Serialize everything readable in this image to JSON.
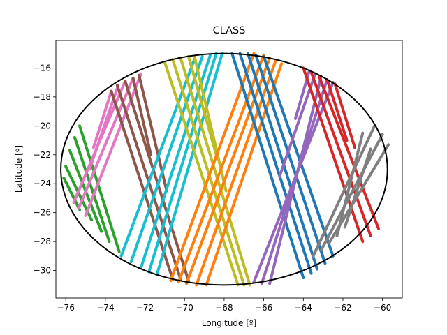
{
  "chart_data": {
    "type": "line",
    "title": "CLASS",
    "xlabel": "Longitude [º]",
    "ylabel": "Latitude [º]",
    "xlim": [
      -76.5,
      -59.0
    ],
    "ylim": [
      -31.9,
      -14.1
    ],
    "grid": false,
    "legend": "none",
    "x_ticks": [
      -76,
      -74,
      -72,
      -70,
      -68,
      -66,
      -64,
      -62,
      -60
    ],
    "y_ticks": [
      -30,
      -28,
      -26,
      -24,
      -22,
      -20,
      -18,
      -16
    ],
    "x_tick_labels": [
      "−76",
      "−74",
      "−72",
      "−70",
      "−68",
      "−66",
      "−64",
      "−62",
      "−60"
    ],
    "y_tick_labels": [
      "−30",
      "−28",
      "−26",
      "−24",
      "−22",
      "−20",
      "−18",
      "−16"
    ],
    "boundary_ellipse": {
      "center": [
        -68.0,
        -23.0
      ],
      "semi_axis_lon": 8.25,
      "semi_axis_lat": 8.0,
      "color": "#000000"
    },
    "series": [
      {
        "color": "#2ca02c",
        "tracks": [
          [
            [
              -75.3,
              -20.0
            ],
            [
              -73.3,
              -28.7
            ]
          ],
          [
            [
              -75.55,
              -20.8
            ],
            [
              -73.8,
              -28.0
            ]
          ],
          [
            [
              -75.8,
              -21.7
            ],
            [
              -74.2,
              -27.3
            ]
          ],
          [
            [
              -76.0,
              -22.8
            ],
            [
              -74.7,
              -26.5
            ]
          ],
          [
            [
              -76.1,
              -23.6
            ],
            [
              -75.3,
              -25.8
            ]
          ]
        ]
      },
      {
        "color": "#e377c2",
        "tracks": [
          [
            [
              -72.2,
              -16.4
            ],
            [
              -75.0,
              -26.2
            ]
          ],
          [
            [
              -72.6,
              -16.7
            ],
            [
              -75.35,
              -25.7
            ]
          ],
          [
            [
              -73.0,
              -16.9
            ],
            [
              -75.6,
              -25.3
            ]
          ],
          [
            [
              -73.35,
              -17.2
            ],
            [
              -74.8,
              -23.0
            ]
          ],
          [
            [
              -73.7,
              -17.6
            ],
            [
              -74.6,
              -21.5
            ]
          ]
        ]
      },
      {
        "color": "#8c564b",
        "tracks": [
          [
            [
              -73.7,
              -17.6
            ],
            [
              -70.6,
              -30.6
            ]
          ],
          [
            [
              -73.4,
              -17.2
            ],
            [
              -70.2,
              -30.6
            ]
          ],
          [
            [
              -73.0,
              -16.9
            ],
            [
              -69.8,
              -30.7
            ]
          ],
          [
            [
              -72.6,
              -16.7
            ],
            [
              -71.7,
              -22.0
            ]
          ],
          [
            [
              -72.3,
              -16.5
            ],
            [
              -70.9,
              -24.5
            ]
          ]
        ]
      },
      {
        "color": "#17becf",
        "tracks": [
          [
            [
              -69.5,
              -15.4
            ],
            [
              -73.2,
              -29.0
            ]
          ],
          [
            [
              -69.1,
              -15.2
            ],
            [
              -72.7,
              -29.4
            ]
          ],
          [
            [
              -68.7,
              -15.1
            ],
            [
              -72.2,
              -29.8
            ]
          ],
          [
            [
              -68.4,
              -15.0
            ],
            [
              -71.8,
              -30.1
            ]
          ],
          [
            [
              -68.1,
              -15.0
            ],
            [
              -71.4,
              -30.3
            ]
          ]
        ]
      },
      {
        "color": "#bcbd22",
        "tracks": [
          [
            [
              -71.0,
              -15.6
            ],
            [
              -67.3,
              -31.0
            ]
          ],
          [
            [
              -70.6,
              -15.4
            ],
            [
              -67.0,
              -31.0
            ]
          ],
          [
            [
              -70.2,
              -15.3
            ],
            [
              -66.7,
              -31.0
            ]
          ],
          [
            [
              -69.8,
              -15.2
            ],
            [
              -68.4,
              -22.0
            ]
          ],
          [
            [
              -69.5,
              -15.2
            ],
            [
              -67.9,
              -24.5
            ]
          ]
        ]
      },
      {
        "color": "#ff7f0e",
        "tracks": [
          [
            [
              -66.0,
              -15.1
            ],
            [
              -70.3,
              -30.8
            ]
          ],
          [
            [
              -65.7,
              -15.3
            ],
            [
              -69.9,
              -30.9
            ]
          ],
          [
            [
              -65.4,
              -15.5
            ],
            [
              -69.4,
              -31.0
            ]
          ],
          [
            [
              -65.1,
              -15.7
            ],
            [
              -68.9,
              -31.0
            ]
          ],
          [
            [
              -66.5,
              -15.0
            ],
            [
              -70.7,
              -30.7
            ]
          ]
        ]
      },
      {
        "color": "#1f77b4",
        "tracks": [
          [
            [
              -67.6,
              -15.0
            ],
            [
              -64.0,
              -30.5
            ]
          ],
          [
            [
              -67.2,
              -15.0
            ],
            [
              -63.6,
              -30.2
            ]
          ],
          [
            [
              -66.8,
              -15.0
            ],
            [
              -63.3,
              -29.9
            ]
          ],
          [
            [
              -66.4,
              -15.1
            ],
            [
              -62.9,
              -29.5
            ]
          ],
          [
            [
              -66.0,
              -15.2
            ],
            [
              -62.5,
              -29.0
            ]
          ]
        ]
      },
      {
        "color": "#9467bd",
        "tracks": [
          [
            [
              -62.5,
              -17.0
            ],
            [
              -66.5,
              -30.8
            ]
          ],
          [
            [
              -62.8,
              -16.8
            ],
            [
              -66.1,
              -30.9
            ]
          ],
          [
            [
              -63.1,
              -16.6
            ],
            [
              -65.7,
              -30.9
            ]
          ],
          [
            [
              -63.4,
              -16.4
            ],
            [
              -65.2,
              -23.5
            ]
          ],
          [
            [
              -63.7,
              -16.2
            ],
            [
              -64.4,
              -19.5
            ]
          ]
        ]
      },
      {
        "color": "#d62728",
        "tracks": [
          [
            [
              -64.0,
              -16.0
            ],
            [
              -61.0,
              -28.0
            ]
          ],
          [
            [
              -63.6,
              -16.3
            ],
            [
              -60.6,
              -27.6
            ]
          ],
          [
            [
              -63.2,
              -16.6
            ],
            [
              -60.2,
              -27.1
            ]
          ],
          [
            [
              -62.8,
              -16.8
            ],
            [
              -61.8,
              -21.0
            ]
          ],
          [
            [
              -62.4,
              -17.1
            ],
            [
              -61.4,
              -21.5
            ]
          ]
        ]
      },
      {
        "color": "#7f7f7f",
        "tracks": [
          [
            [
              -60.4,
              -20.0
            ],
            [
              -63.5,
              -29.0
            ]
          ],
          [
            [
              -60.0,
              -20.6
            ],
            [
              -63.1,
              -28.6
            ]
          ],
          [
            [
              -59.7,
              -21.3
            ],
            [
              -62.7,
              -28.1
            ]
          ],
          [
            [
              -61.0,
              -20.5
            ],
            [
              -62.3,
              -27.6
            ]
          ],
          [
            [
              -60.6,
              -21.6
            ],
            [
              -61.9,
              -27.0
            ]
          ]
        ]
      }
    ]
  }
}
